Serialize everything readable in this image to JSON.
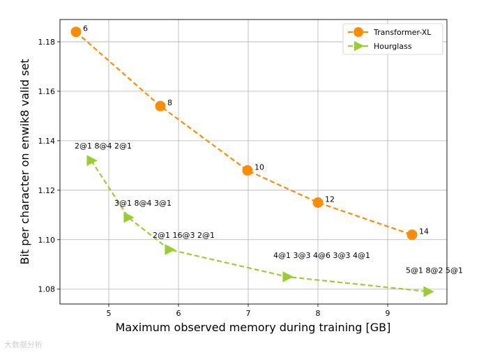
{
  "chart_data": {
    "type": "line",
    "xlabel": "Maximum observed memory during training [GB]",
    "ylabel": "Bit per character on enwik8 valid set",
    "xlim": [
      4.3,
      9.85
    ],
    "ylim": [
      1.074,
      1.189
    ],
    "x_ticks": [
      5,
      6,
      7,
      8,
      9
    ],
    "y_ticks": [
      1.08,
      1.1,
      1.12,
      1.14,
      1.16,
      1.18
    ],
    "y_tick_labels": [
      "1.08",
      "1.10",
      "1.12",
      "1.14",
      "1.16",
      "1.18"
    ],
    "grid": true,
    "legend_position": "top-right",
    "series": [
      {
        "name": "Transformer-XL",
        "color": "#ff8c00",
        "marker": "circle",
        "linestyle": "dashed",
        "points": [
          {
            "x": 4.53,
            "y": 1.184,
            "label": "6"
          },
          {
            "x": 5.74,
            "y": 1.154,
            "label": "8"
          },
          {
            "x": 6.99,
            "y": 1.128,
            "label": "10"
          },
          {
            "x": 8.0,
            "y": 1.115,
            "label": "12"
          },
          {
            "x": 9.35,
            "y": 1.102,
            "label": "14"
          }
        ]
      },
      {
        "name": "Hourglass",
        "color": "#9acd32",
        "marker": "triangle-right",
        "linestyle": "dashed",
        "points": [
          {
            "x": 4.75,
            "y": 1.132,
            "label": "2@1 8@4 2@1"
          },
          {
            "x": 5.28,
            "y": 1.109,
            "label": "3@1 8@4 3@1"
          },
          {
            "x": 5.87,
            "y": 1.096,
            "label": "2@1 16@3 2@1"
          },
          {
            "x": 7.56,
            "y": 1.085,
            "label": "4@1 3@3 4@6 3@3 4@1"
          },
          {
            "x": 9.58,
            "y": 1.079,
            "label": "5@1 8@2 5@1"
          }
        ]
      }
    ]
  },
  "watermark": "大数据分析"
}
